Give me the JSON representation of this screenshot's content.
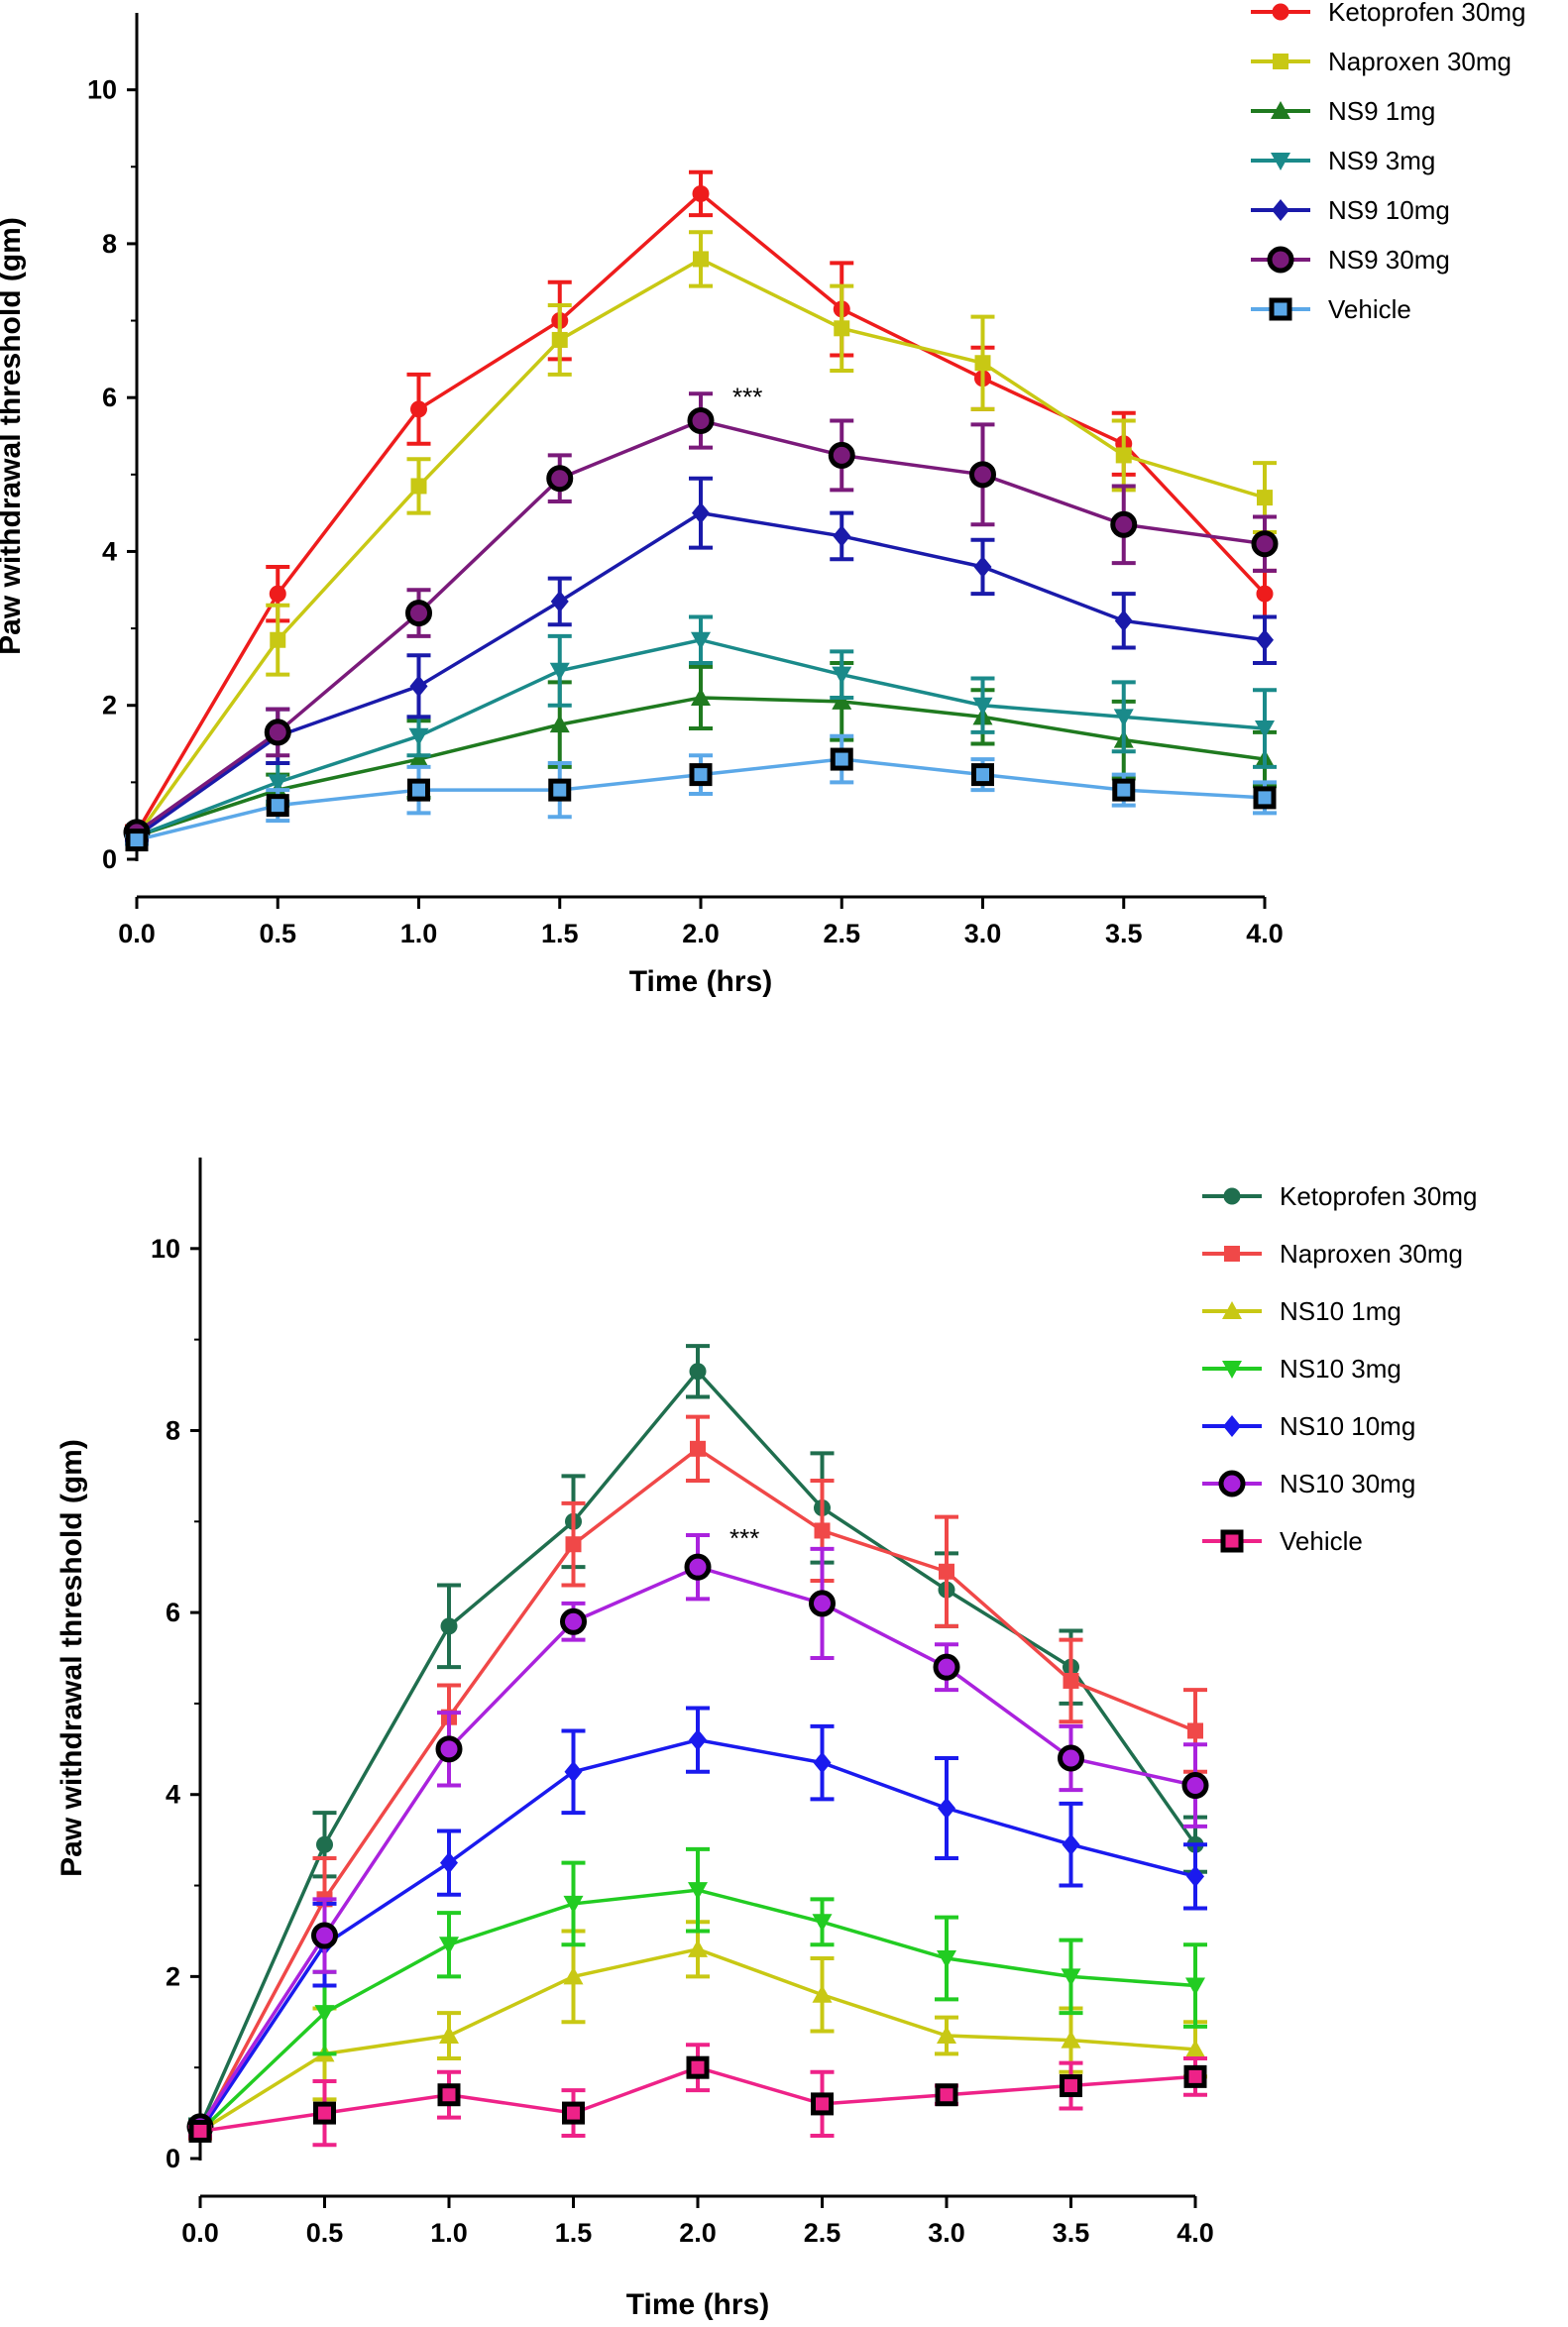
{
  "chart_data": [
    {
      "type": "line",
      "title": "",
      "xlabel": "Time (hrs)",
      "ylabel": "Paw withdrawal threshold (gm)",
      "xlim": [
        0,
        4
      ],
      "ylim": [
        0,
        11
      ],
      "x": [
        0.0,
        0.5,
        1.0,
        1.5,
        2.0,
        2.5,
        3.0,
        3.5,
        4.0
      ],
      "x_tick_labels": [
        "0.0",
        "0.5",
        "1.0",
        "1.5",
        "2.0",
        "2.5",
        "3.0",
        "3.5",
        "4.0"
      ],
      "y_ticks": [
        0,
        2,
        4,
        6,
        8,
        10
      ],
      "y_tick_labels": [
        "0",
        "2",
        "4",
        "6",
        "8",
        "10"
      ],
      "legend_position": "top-right",
      "annotation": {
        "text": "***",
        "x": 2.0,
        "y": 6.05
      },
      "series": [
        {
          "name": "Ketoprofen 30mg",
          "color": "#ee1c1c",
          "marker": "circle",
          "values": [
            0.35,
            3.45,
            5.85,
            7.0,
            8.65,
            7.15,
            6.25,
            5.4,
            3.45
          ],
          "errors": [
            0.08,
            0.35,
            0.45,
            0.5,
            0.28,
            0.6,
            0.4,
            0.4,
            0.3
          ]
        },
        {
          "name": "Naproxen 30mg",
          "color": "#c8c814",
          "marker": "square",
          "values": [
            0.3,
            2.85,
            4.85,
            6.75,
            7.8,
            6.9,
            6.45,
            5.25,
            4.7
          ],
          "errors": [
            0.08,
            0.45,
            0.35,
            0.45,
            0.35,
            0.55,
            0.6,
            0.45,
            0.45
          ]
        },
        {
          "name": "NS9 1mg",
          "color": "#1f7a1f",
          "marker": "triangle-up",
          "values": [
            0.3,
            0.9,
            1.3,
            1.75,
            2.1,
            2.05,
            1.85,
            1.55,
            1.3
          ],
          "errors": [
            0.05,
            0.2,
            0.5,
            0.55,
            0.4,
            0.5,
            0.35,
            0.5,
            0.35
          ]
        },
        {
          "name": "NS9 3mg",
          "color": "#1a8a8a",
          "marker": "triangle-down",
          "values": [
            0.3,
            1.0,
            1.6,
            2.45,
            2.85,
            2.4,
            2.0,
            1.85,
            1.7
          ],
          "errors": [
            0.05,
            0.25,
            0.25,
            0.45,
            0.3,
            0.3,
            0.35,
            0.45,
            0.5
          ]
        },
        {
          "name": "NS9 10mg",
          "color": "#1a1aaa",
          "marker": "diamond",
          "values": [
            0.3,
            1.6,
            2.25,
            3.35,
            4.5,
            4.2,
            3.8,
            3.1,
            2.85
          ],
          "errors": [
            0.05,
            0.35,
            0.4,
            0.3,
            0.45,
            0.3,
            0.35,
            0.35,
            0.3
          ]
        },
        {
          "name": "NS9 30mg",
          "color": "#7a1a7a",
          "marker": "circle-filled-black",
          "values": [
            0.35,
            1.65,
            3.2,
            4.95,
            5.7,
            5.25,
            5.0,
            4.35,
            4.1
          ],
          "errors": [
            0.05,
            0.3,
            0.3,
            0.3,
            0.35,
            0.45,
            0.65,
            0.5,
            0.35
          ]
        },
        {
          "name": "Vehicle",
          "color": "#5ba8e8",
          "marker": "square-open",
          "values": [
            0.25,
            0.7,
            0.9,
            0.9,
            1.1,
            1.3,
            1.1,
            0.9,
            0.8
          ],
          "errors": [
            0.05,
            0.2,
            0.3,
            0.35,
            0.25,
            0.3,
            0.2,
            0.2,
            0.2
          ]
        }
      ]
    },
    {
      "type": "line",
      "title": "",
      "xlabel": "Time (hrs)",
      "ylabel": "Paw withdrawal threshold (gm)",
      "xlim": [
        0,
        4
      ],
      "ylim": [
        0,
        11
      ],
      "x": [
        0.0,
        0.5,
        1.0,
        1.5,
        2.0,
        2.5,
        3.0,
        3.5,
        4.0
      ],
      "x_tick_labels": [
        "0.0",
        "0.5",
        "1.0",
        "1.5",
        "2.0",
        "2.5",
        "3.0",
        "3.5",
        "4.0"
      ],
      "y_ticks": [
        0,
        2,
        4,
        6,
        8,
        10
      ],
      "y_tick_labels": [
        "0",
        "2",
        "4",
        "6",
        "8",
        "10"
      ],
      "legend_position": "top-right",
      "annotation": {
        "text": "***",
        "x": 2.0,
        "y": 6.85
      },
      "series": [
        {
          "name": "Ketoprofen 30mg",
          "color": "#1f6e4e",
          "marker": "circle",
          "values": [
            0.35,
            3.45,
            5.85,
            7.0,
            8.65,
            7.15,
            6.25,
            5.4,
            3.45
          ],
          "errors": [
            0.08,
            0.35,
            0.45,
            0.5,
            0.28,
            0.6,
            0.4,
            0.4,
            0.3
          ]
        },
        {
          "name": "Naproxen 30mg",
          "color": "#f04848",
          "marker": "square",
          "values": [
            0.3,
            2.85,
            4.85,
            6.75,
            7.8,
            6.9,
            6.45,
            5.25,
            4.7
          ],
          "errors": [
            0.08,
            0.45,
            0.35,
            0.45,
            0.35,
            0.55,
            0.6,
            0.45,
            0.45
          ]
        },
        {
          "name": "NS10 1mg",
          "color": "#c8c814",
          "marker": "triangle-up",
          "values": [
            0.3,
            1.15,
            1.35,
            2.0,
            2.3,
            1.8,
            1.35,
            1.3,
            1.2
          ],
          "errors": [
            0.05,
            0.5,
            0.25,
            0.5,
            0.3,
            0.4,
            0.2,
            0.35,
            0.3
          ]
        },
        {
          "name": "NS10 3mg",
          "color": "#22cc22",
          "marker": "triangle-down",
          "values": [
            0.3,
            1.6,
            2.35,
            2.8,
            2.95,
            2.6,
            2.2,
            2.0,
            1.9
          ],
          "errors": [
            0.05,
            0.45,
            0.35,
            0.45,
            0.45,
            0.25,
            0.45,
            0.4,
            0.45
          ]
        },
        {
          "name": "NS10 10mg",
          "color": "#1a1aee",
          "marker": "diamond",
          "values": [
            0.3,
            2.35,
            3.25,
            4.25,
            4.6,
            4.35,
            3.85,
            3.45,
            3.1
          ],
          "errors": [
            0.05,
            0.45,
            0.35,
            0.45,
            0.35,
            0.4,
            0.55,
            0.45,
            0.35
          ]
        },
        {
          "name": "NS10 30mg",
          "color": "#aa22dd",
          "marker": "circle-filled-black",
          "values": [
            0.35,
            2.45,
            4.5,
            5.9,
            6.5,
            6.1,
            5.4,
            4.4,
            4.1
          ],
          "errors": [
            0.05,
            0.4,
            0.4,
            0.2,
            0.35,
            0.6,
            0.25,
            0.35,
            0.45
          ]
        },
        {
          "name": "Vehicle",
          "color": "#ee2288",
          "marker": "square-open",
          "values": [
            0.3,
            0.5,
            0.7,
            0.5,
            1.0,
            0.6,
            0.7,
            0.8,
            0.9
          ],
          "errors": [
            0.05,
            0.35,
            0.25,
            0.25,
            0.25,
            0.35,
            0.1,
            0.25,
            0.2
          ]
        }
      ]
    }
  ]
}
